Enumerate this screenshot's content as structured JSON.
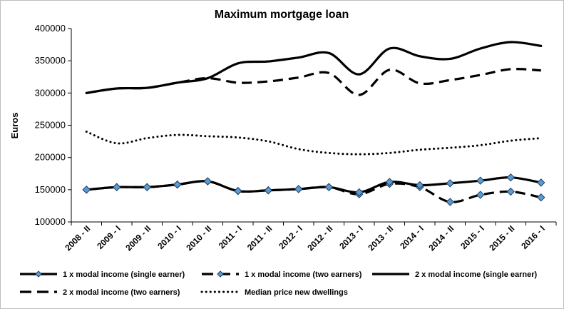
{
  "chart_data": {
    "type": "line",
    "title": "Maximum mortgage loan",
    "xlabel": "",
    "ylabel": "Euros",
    "ylim": [
      100000,
      400000
    ],
    "yticks": [
      100000,
      150000,
      200000,
      250000,
      300000,
      350000,
      400000
    ],
    "ytick_labels": [
      "100000",
      "150000",
      "200000",
      "250000",
      "300000",
      "350000",
      "400000"
    ],
    "grid": false,
    "legend_position": "bottom",
    "categories": [
      "2008 - II",
      "2009 - I",
      "2009 - II",
      "2010 - I",
      "2010 - II",
      "2011 - I",
      "2011 - II",
      "2012 - I",
      "2012 - II",
      "2013 - I",
      "2013 - II",
      "2014 - I",
      "2014 - II",
      "2015 - I",
      "2015 - II",
      "2016 - I"
    ],
    "series": [
      {
        "name": "1 x modal income (single earner)",
        "style": "solid-markers",
        "color": "#000000",
        "marker_color": "#5b9bd5",
        "values": [
          150000,
          154000,
          154000,
          158000,
          163000,
          148000,
          149000,
          151000,
          154000,
          146000,
          162000,
          157000,
          160000,
          164000,
          169000,
          161000
        ]
      },
      {
        "name": "1 x modal income (two earners)",
        "style": "dashed-markers",
        "color": "#000000",
        "marker_color": "#5b9bd5",
        "values": [
          150000,
          154000,
          154000,
          158000,
          163000,
          148000,
          149000,
          151000,
          154000,
          143000,
          159000,
          154000,
          131000,
          142000,
          147000,
          138000
        ]
      },
      {
        "name": "2 x modal income (single earner)",
        "style": "solid",
        "color": "#000000",
        "values": [
          300000,
          307000,
          308000,
          316000,
          323000,
          346000,
          349000,
          355000,
          362000,
          329000,
          369000,
          357000,
          353000,
          369000,
          379000,
          373000
        ]
      },
      {
        "name": "2 x modal income (two earners)",
        "style": "dashed",
        "color": "#000000",
        "values": [
          300000,
          307000,
          308000,
          316000,
          323000,
          316000,
          318000,
          324000,
          331000,
          297000,
          336000,
          315000,
          320000,
          328000,
          337000,
          335000
        ]
      },
      {
        "name": "Median price new dwellings",
        "style": "dotted",
        "color": "#000000",
        "values": [
          240000,
          222000,
          230000,
          235000,
          233000,
          231000,
          225000,
          213000,
          207000,
          205000,
          207000,
          212000,
          215000,
          219000,
          226000,
          230000
        ]
      }
    ]
  }
}
